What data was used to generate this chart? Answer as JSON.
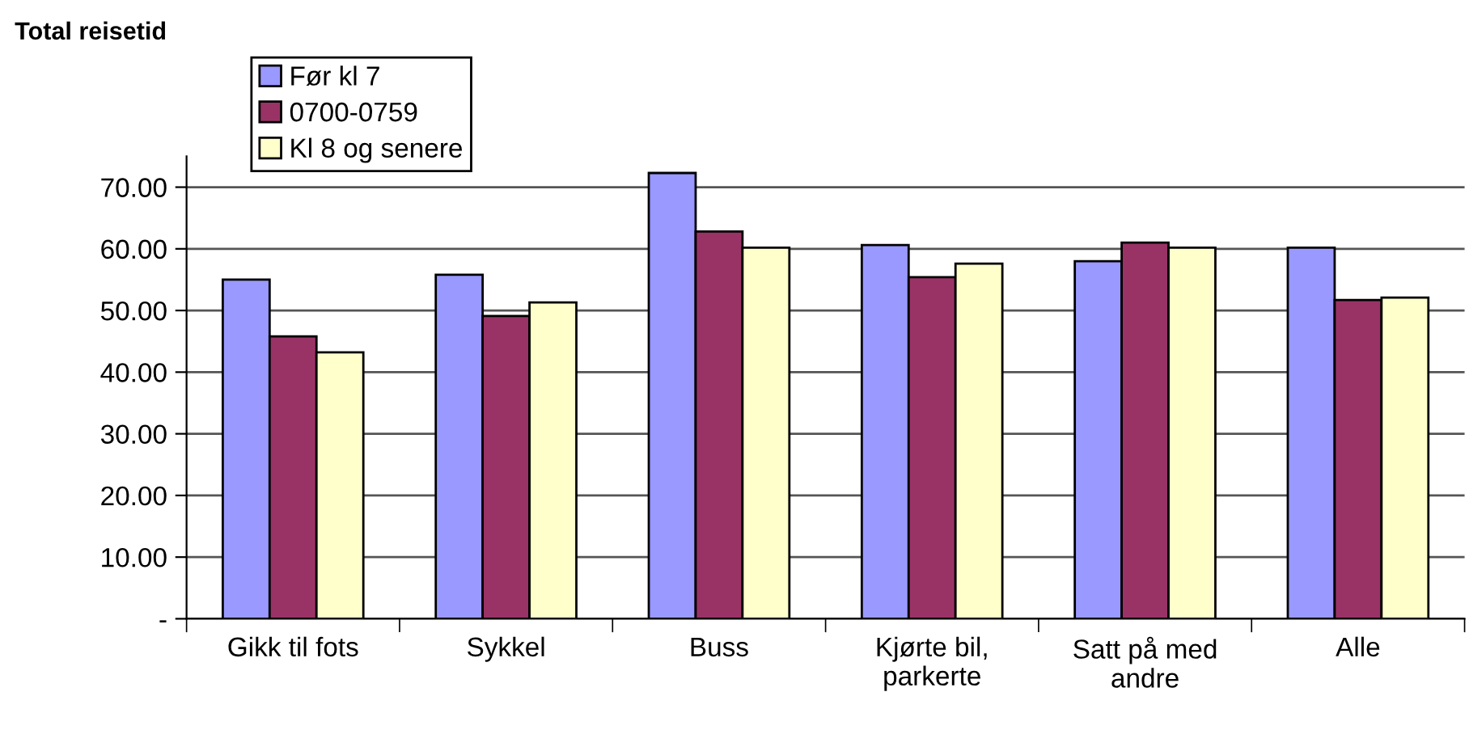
{
  "chart_data": {
    "type": "bar",
    "title": "Total reisetid",
    "categories": [
      "Gikk til fots",
      "Sykkel",
      "Buss",
      "Kjørte bil,\nparkerte",
      "Satt på med\nandre",
      "Alle"
    ],
    "series": [
      {
        "name": "Før kl 7",
        "color": "#9999ff",
        "values": [
          55.0,
          55.8,
          72.3,
          60.6,
          58.0,
          60.2
        ]
      },
      {
        "name": "0700-0759",
        "color": "#993366",
        "values": [
          45.8,
          49.1,
          62.8,
          55.4,
          61.0,
          51.7
        ]
      },
      {
        "name": "Kl 8 og senere",
        "color": "#ffffcc",
        "values": [
          43.2,
          51.3,
          60.2,
          57.6,
          60.2,
          52.1
        ]
      }
    ],
    "ylim": [
      0,
      75
    ],
    "yticks": [
      {
        "value": 0,
        "label": "-"
      },
      {
        "value": 10,
        "label": "10.00"
      },
      {
        "value": 20,
        "label": "20.00"
      },
      {
        "value": 30,
        "label": "30.00"
      },
      {
        "value": 40,
        "label": "40.00"
      },
      {
        "value": 50,
        "label": "50.00"
      },
      {
        "value": 60,
        "label": "60.00"
      },
      {
        "value": 70,
        "label": "70.00"
      }
    ],
    "grid": "y",
    "legend": "top left"
  }
}
